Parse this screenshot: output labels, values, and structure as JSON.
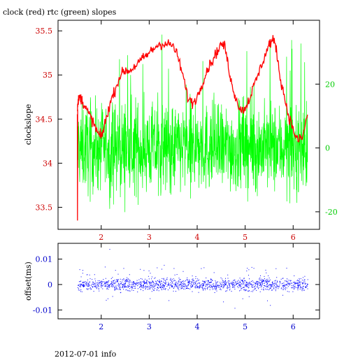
{
  "title": "clock (red) rtc (green) slopes",
  "footer": "2012-07-01 info",
  "colors": {
    "red": "#ff0000",
    "green": "#00ff00",
    "blue": "#0000ff",
    "axis": "#000000"
  },
  "chart_data": [
    {
      "type": "line",
      "title": "clock (red) rtc (green) slopes",
      "ylabel": "clockslope",
      "xlim": [
        1.1,
        6.55
      ],
      "x_ticks": [
        2,
        3,
        4,
        5,
        6
      ],
      "x_tick_labels": [
        "2",
        "3",
        "4",
        "5",
        "6"
      ],
      "ylim": [
        33.25,
        35.62
      ],
      "y_ticks": [
        33.5,
        34,
        34.5,
        35,
        35.5
      ],
      "y_tick_labels": [
        "33.5",
        "34",
        "34.5",
        "35",
        "35.5"
      ],
      "y2lim": [
        -25.5,
        40.0
      ],
      "y2_ticks": [
        -20,
        0,
        20
      ],
      "y2_tick_labels": [
        "-20",
        "0",
        "20"
      ],
      "series": [
        {
          "axis": "left",
          "color": "#ff0000",
          "x": [
            1.5,
            1.52,
            1.55,
            1.6,
            1.65,
            1.72,
            1.8,
            1.88,
            1.95,
            2.0,
            2.05,
            2.12,
            2.2,
            2.3,
            2.4,
            2.5,
            2.6,
            2.7,
            2.8,
            2.9,
            3.0,
            3.1,
            3.2,
            3.3,
            3.4,
            3.5,
            3.6,
            3.7,
            3.8,
            3.9,
            4.0,
            4.1,
            4.2,
            4.3,
            4.4,
            4.5,
            4.58,
            4.65,
            4.72,
            4.8,
            4.9,
            5.0,
            5.1,
            5.2,
            5.3,
            5.4,
            5.5,
            5.58,
            5.65,
            5.72,
            5.8,
            5.9,
            6.0,
            6.1,
            6.2,
            6.3
          ],
          "y": [
            34.6,
            34.7,
            34.75,
            34.72,
            34.65,
            34.58,
            34.5,
            34.4,
            34.32,
            34.3,
            34.38,
            34.55,
            34.7,
            34.85,
            35.0,
            35.05,
            35.05,
            35.1,
            35.15,
            35.2,
            35.25,
            35.3,
            35.35,
            35.35,
            35.35,
            35.33,
            35.2,
            35.0,
            34.75,
            34.68,
            34.75,
            34.9,
            35.05,
            35.15,
            35.25,
            35.35,
            35.32,
            35.1,
            34.9,
            34.75,
            34.6,
            34.62,
            34.75,
            34.9,
            35.05,
            35.2,
            35.35,
            35.4,
            35.3,
            35.0,
            34.8,
            34.55,
            34.38,
            34.25,
            34.3,
            34.55
          ]
        },
        {
          "axis": "right",
          "color": "#00ff00",
          "x_range": [
            1.5,
            6.3
          ],
          "center": 0,
          "band": [
            -15,
            15
          ],
          "extreme": [
            -23,
            37
          ]
        }
      ]
    },
    {
      "type": "scatter",
      "ylabel": "offset(ms)",
      "xlim": [
        1.1,
        6.55
      ],
      "x_ticks": [
        2,
        3,
        4,
        5,
        6
      ],
      "x_tick_labels": [
        "2",
        "3",
        "4",
        "5",
        "6"
      ],
      "ylim": [
        -0.0135,
        0.0162
      ],
      "y_ticks": [
        -0.01,
        0,
        0.01
      ],
      "y_tick_labels": [
        "-0.01",
        "0",
        "0.01"
      ],
      "series": [
        {
          "color": "#0000ff",
          "x_range": [
            1.5,
            6.3
          ],
          "center": 0,
          "band": [
            -0.003,
            0.003
          ],
          "extreme": [
            -0.01,
            0.014
          ]
        }
      ]
    }
  ]
}
